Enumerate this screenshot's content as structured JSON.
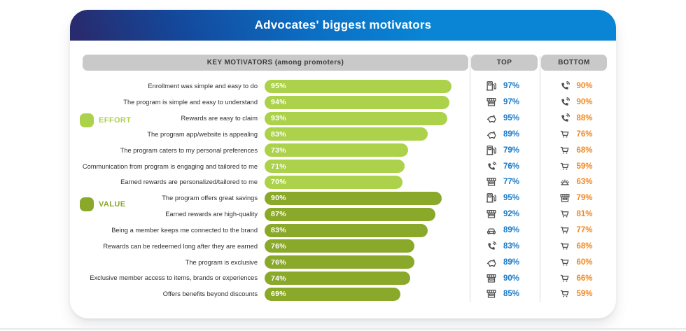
{
  "header": {
    "title": "Advocates' biggest motivators"
  },
  "table": {
    "columns": [
      "KEY MOTIVATORS (among promoters)",
      "TOP",
      "BOTTOM"
    ]
  },
  "legend": {
    "effort": {
      "label": "EFFORT",
      "color": "#acd14a"
    },
    "value": {
      "label": "VALUE",
      "color": "#8aa82a"
    }
  },
  "colors": {
    "header_gradient_start": "#282b6e",
    "header_gradient_end": "#0a84d4",
    "effort_bar": "#acd14a",
    "value_bar": "#8aa82a",
    "top_percent": "#1478c9",
    "bottom_percent": "#f0881f",
    "icon": "#4d4d4d",
    "table_header_bg": "#c9c9c9"
  },
  "chart_data": {
    "type": "bar",
    "title": "Advocates' biggest motivators",
    "unit": "%",
    "x_range": [
      0,
      100
    ],
    "legend_groups": [
      "EFFORT",
      "VALUE"
    ],
    "categories": [
      "Enrollment was simple and easy to do",
      "The program is simple and easy to understand",
      "Rewards are easy to claim",
      "The program app/website is appealing",
      "The program caters to my personal preferences",
      "Communication from program is engaging and tailored to me",
      "Earned rewards are personalized/tailored to me",
      "The program offers great savings",
      "Earned rewards are high-quality",
      "Being a member keeps me connected to the brand",
      "Rewards can be redeemed long after they are earned",
      "The program is exclusive",
      "Exclusive member access to items, brands or experiences",
      "Offers benefits beyond discounts"
    ],
    "series": [
      {
        "name": "among promoters",
        "values": [
          95,
          94,
          93,
          83,
          73,
          71,
          70,
          90,
          87,
          83,
          76,
          76,
          74,
          69
        ]
      },
      {
        "name": "TOP",
        "values": [
          97,
          97,
          95,
          89,
          79,
          76,
          77,
          95,
          92,
          89,
          83,
          89,
          90,
          85
        ]
      },
      {
        "name": "BOTTOM",
        "values": [
          90,
          90,
          88,
          76,
          68,
          59,
          63,
          79,
          81,
          77,
          68,
          60,
          66,
          59
        ]
      }
    ],
    "rows": [
      {
        "label": "Enrollment was simple and easy to do",
        "value": 95,
        "group": "EFFORT",
        "top_icon": "fuel-pump-icon",
        "top_value": 97,
        "bottom_icon": "phone-call-icon",
        "bottom_value": 90
      },
      {
        "label": "The program is simple and easy to understand",
        "value": 94,
        "group": "EFFORT",
        "top_icon": "storefront-icon",
        "top_value": 97,
        "bottom_icon": "phone-call-icon",
        "bottom_value": 90
      },
      {
        "label": "Rewards are easy to claim",
        "value": 93,
        "group": "EFFORT",
        "top_icon": "piggy-bank-icon",
        "top_value": 95,
        "bottom_icon": "phone-call-icon",
        "bottom_value": 88
      },
      {
        "label": "The program app/website is appealing",
        "value": 83,
        "group": "EFFORT",
        "top_icon": "piggy-bank-icon",
        "top_value": 89,
        "bottom_icon": "shopping-cart-icon",
        "bottom_value": 76
      },
      {
        "label": "The program caters to my personal preferences",
        "value": 73,
        "group": "EFFORT",
        "top_icon": "fuel-pump-icon",
        "top_value": 79,
        "bottom_icon": "shopping-cart-icon",
        "bottom_value": 68
      },
      {
        "label": "Communication from program is engaging and tailored to me",
        "value": 71,
        "group": "EFFORT",
        "top_icon": "phone-call-icon",
        "top_value": 76,
        "bottom_icon": "shopping-cart-icon",
        "bottom_value": 59
      },
      {
        "label": "Earned rewards are personalized/tailored to me",
        "value": 70,
        "group": "EFFORT",
        "top_icon": "storefront-icon",
        "top_value": 77,
        "bottom_icon": "cloche-icon",
        "bottom_value": 63
      },
      {
        "label": "The program offers great savings",
        "value": 90,
        "group": "VALUE",
        "top_icon": "fuel-pump-icon",
        "top_value": 95,
        "bottom_icon": "storefront-icon",
        "bottom_value": 79
      },
      {
        "label": "Earned rewards are high-quality",
        "value": 87,
        "group": "VALUE",
        "top_icon": "storefront-icon",
        "top_value": 92,
        "bottom_icon": "shopping-cart-icon",
        "bottom_value": 81
      },
      {
        "label": "Being a member keeps me connected to the brand",
        "value": 83,
        "group": "VALUE",
        "top_icon": "car-icon",
        "top_value": 89,
        "bottom_icon": "shopping-cart-icon",
        "bottom_value": 77
      },
      {
        "label": "Rewards can be redeemed long after they are earned",
        "value": 76,
        "group": "VALUE",
        "top_icon": "phone-call-icon",
        "top_value": 83,
        "bottom_icon": "shopping-cart-icon",
        "bottom_value": 68
      },
      {
        "label": "The program is exclusive",
        "value": 76,
        "group": "VALUE",
        "top_icon": "piggy-bank-icon",
        "top_value": 89,
        "bottom_icon": "shopping-cart-icon",
        "bottom_value": 60
      },
      {
        "label": "Exclusive member access to items, brands or experiences",
        "value": 74,
        "group": "VALUE",
        "top_icon": "storefront-icon",
        "top_value": 90,
        "bottom_icon": "shopping-cart-icon",
        "bottom_value": 66
      },
      {
        "label": "Offers benefits beyond discounts",
        "value": 69,
        "group": "VALUE",
        "top_icon": "storefront-icon",
        "top_value": 85,
        "bottom_icon": "shopping-cart-icon",
        "bottom_value": 59
      }
    ]
  }
}
